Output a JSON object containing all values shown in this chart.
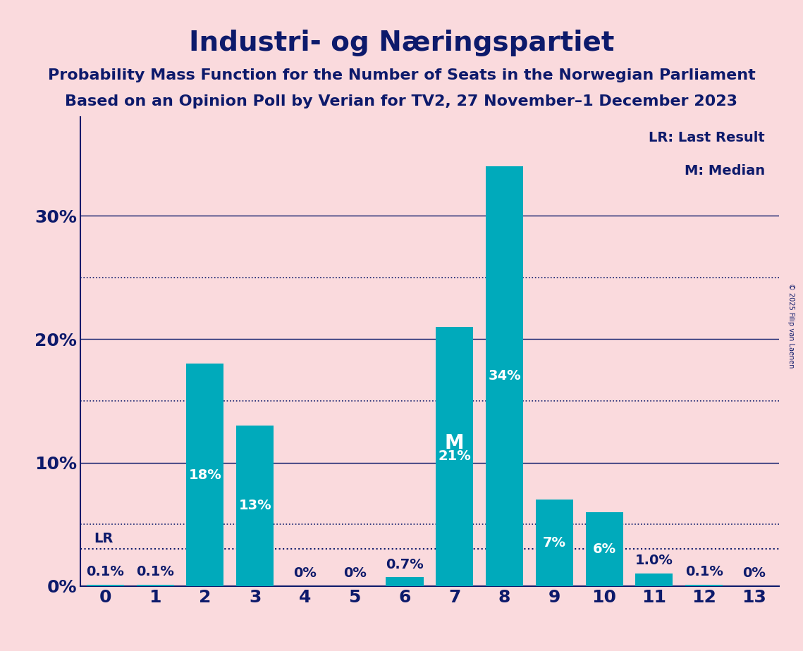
{
  "categories": [
    0,
    1,
    2,
    3,
    4,
    5,
    6,
    7,
    8,
    9,
    10,
    11,
    12,
    13
  ],
  "values": [
    0.1,
    0.1,
    18.0,
    13.0,
    0.0,
    0.0,
    0.7,
    21.0,
    34.0,
    7.0,
    6.0,
    1.0,
    0.1,
    0.0
  ],
  "bar_color": "#00AABB",
  "background_color": "#FADADD",
  "title": "Industri- og Næringspartiet",
  "subtitle1": "Probability Mass Function for the Number of Seats in the Norwegian Parliament",
  "subtitle2": "Based on an Opinion Poll by Verian for TV2, 27 November–1 December 2023",
  "title_color": "#0D1A6B",
  "subtitle_color": "#0D1A6B",
  "axis_color": "#0D1A6B",
  "tick_color": "#0D1A6B",
  "bar_label_color": "#0D1A6B",
  "grid_color": "#0D1A6B",
  "yticks": [
    0,
    10,
    20,
    30
  ],
  "ytick_labels": [
    "0%",
    "10%",
    "20%",
    "30%"
  ],
  "ylim": [
    0,
    38
  ],
  "lr_value": 3.0,
  "lr_label": "LR",
  "median_seat": 7,
  "median_label": "M",
  "legend_lr": "LR: Last Result",
  "legend_m": "M: Median",
  "copyright": "© 2025 Filip van Laenen",
  "bar_labels": [
    "0.1%",
    "0.1%",
    "18%",
    "13%",
    "0%",
    "0%",
    "0.7%",
    "21%",
    "34%",
    "7%",
    "6%",
    "1.0%",
    "0.1%",
    "0%"
  ],
  "title_fontsize": 28,
  "subtitle_fontsize": 16,
  "tick_fontsize": 18,
  "bar_label_fontsize": 14,
  "legend_fontsize": 14
}
